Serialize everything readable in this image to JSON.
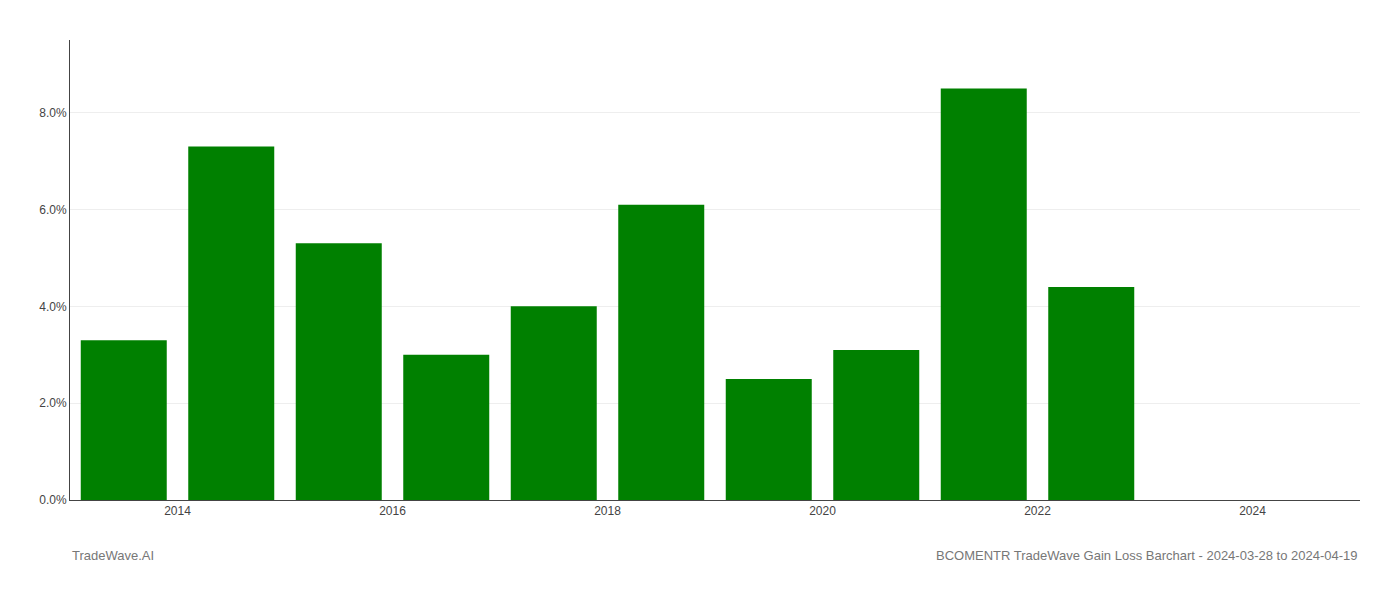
{
  "chart_data": {
    "type": "bar",
    "title": "BCOMENTR TradeWave Gain Loss Barchart - 2024-03-28 to 2024-04-19",
    "annotations": [
      "TradeWave.AI"
    ],
    "x": [
      2013.5,
      2014.5,
      2015.5,
      2016.5,
      2017.5,
      2018.5,
      2019.5,
      2020.5,
      2021.5,
      2022.5
    ],
    "values": [
      0.033,
      0.073,
      0.053,
      0.03,
      0.04,
      0.061,
      0.025,
      0.031,
      0.085,
      0.044
    ],
    "color": "#008000",
    "xlim": [
      2013.0,
      2025.0
    ],
    "xticks": [
      2014,
      2016,
      2018,
      2020,
      2022,
      2024
    ],
    "ylim": [
      0.0,
      0.095
    ],
    "yticks": [
      {
        "value": 0.0,
        "label": "0.0%"
      },
      {
        "value": 0.02,
        "label": "2.0%"
      },
      {
        "value": 0.04,
        "label": "4.0%"
      },
      {
        "value": 0.06,
        "label": "6.0%"
      },
      {
        "value": 0.08,
        "label": "8.0%"
      }
    ],
    "grid": true
  }
}
